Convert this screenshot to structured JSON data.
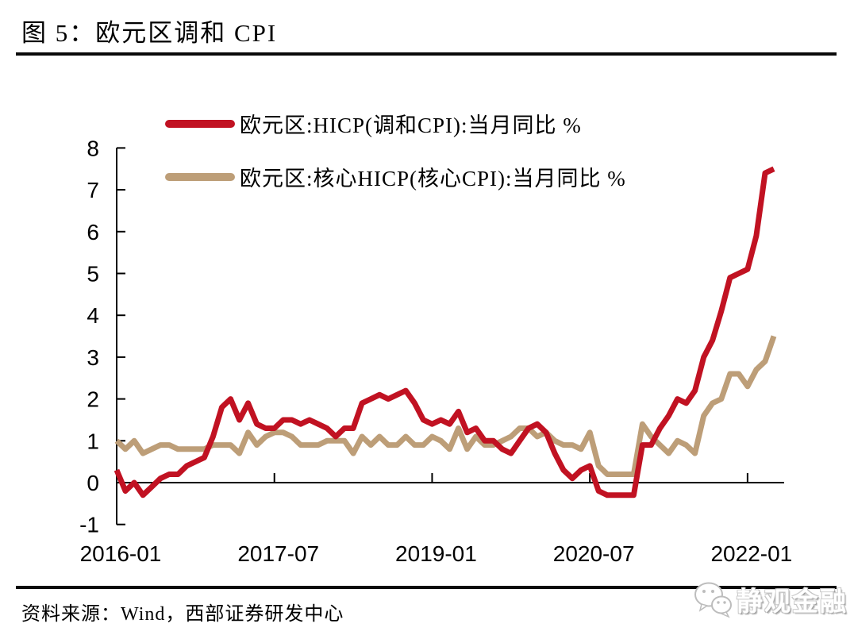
{
  "title": "图 5：欧元区调和 CPI",
  "source": "资料来源：Wind，西部证券研发中心",
  "watermark": {
    "text": "静观金融",
    "icon": "wechat-bubbles-icon"
  },
  "chart_data": {
    "type": "line",
    "title": "欧元区调和 CPI",
    "xlabel": "",
    "ylabel": "",
    "x_unit": "month",
    "x_start": "2016-01",
    "x_end": "2022-04",
    "ylim": [
      -1,
      8
    ],
    "grid": false,
    "legend_position": "top-left-inside",
    "y_ticks": [
      8,
      7,
      6,
      5,
      4,
      3,
      2,
      1,
      0,
      -1
    ],
    "x_ticks": [
      {
        "label": "2016-01",
        "index": 0
      },
      {
        "label": "2017-07",
        "index": 18
      },
      {
        "label": "2019-01",
        "index": 36
      },
      {
        "label": "2020-07",
        "index": 54
      },
      {
        "label": "2022-01",
        "index": 72
      }
    ],
    "series": [
      {
        "name": "欧元区:HICP(调和CPI):当月同比 %",
        "color": "#C11222",
        "values": [
          0.3,
          -0.2,
          0.0,
          -0.3,
          -0.1,
          0.1,
          0.2,
          0.2,
          0.4,
          0.5,
          0.6,
          1.1,
          1.8,
          2.0,
          1.5,
          1.9,
          1.4,
          1.3,
          1.3,
          1.5,
          1.5,
          1.4,
          1.5,
          1.4,
          1.3,
          1.1,
          1.3,
          1.3,
          1.9,
          2.0,
          2.1,
          2.0,
          2.1,
          2.2,
          1.9,
          1.5,
          1.4,
          1.5,
          1.4,
          1.7,
          1.2,
          1.3,
          1.0,
          1.0,
          0.8,
          0.7,
          1.0,
          1.3,
          1.4,
          1.2,
          0.7,
          0.3,
          0.1,
          0.3,
          0.4,
          -0.2,
          -0.3,
          -0.3,
          -0.3,
          -0.3,
          0.9,
          0.9,
          1.3,
          1.6,
          2.0,
          1.9,
          2.2,
          3.0,
          3.4,
          4.1,
          4.9,
          5.0,
          5.1,
          5.9,
          7.4,
          7.5
        ]
      },
      {
        "name": "欧元区:核心HICP(核心CPI):当月同比 %",
        "color": "#BD9E78",
        "values": [
          1.0,
          0.8,
          1.0,
          0.7,
          0.8,
          0.9,
          0.9,
          0.8,
          0.8,
          0.8,
          0.8,
          0.9,
          0.9,
          0.9,
          0.7,
          1.2,
          0.9,
          1.1,
          1.2,
          1.2,
          1.1,
          0.9,
          0.9,
          0.9,
          1.0,
          1.0,
          1.0,
          0.7,
          1.1,
          0.9,
          1.1,
          0.9,
          0.9,
          1.1,
          0.9,
          0.9,
          1.1,
          1.0,
          0.8,
          1.3,
          0.8,
          1.1,
          0.9,
          0.9,
          1.0,
          1.1,
          1.3,
          1.3,
          1.1,
          1.2,
          1.0,
          0.9,
          0.9,
          0.8,
          1.2,
          0.4,
          0.2,
          0.2,
          0.2,
          0.2,
          1.4,
          1.1,
          0.9,
          0.7,
          1.0,
          0.9,
          0.7,
          1.6,
          1.9,
          2.0,
          2.6,
          2.6,
          2.3,
          2.7,
          2.9,
          3.5
        ]
      }
    ]
  }
}
